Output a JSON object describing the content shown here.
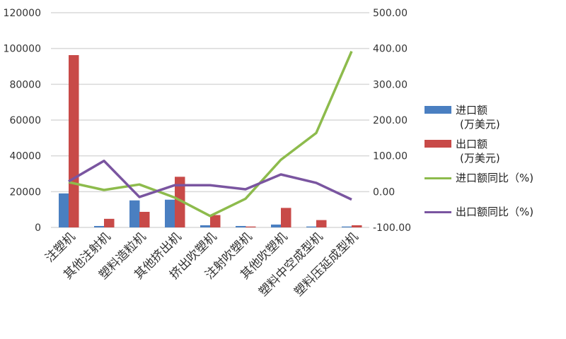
{
  "chart_data": {
    "type": "bar+line",
    "categories": [
      "注塑机",
      "其他注射机",
      "塑料造粒机",
      "其他挤出机",
      "挤出吹塑机",
      "注射吹塑机",
      "其他吹塑机",
      "塑料中空成型机",
      "塑料压延成型机"
    ],
    "left_axis": {
      "range": [
        0,
        120000
      ],
      "ticks": [
        "0",
        "20000",
        "40000",
        "60000",
        "80000",
        "100000",
        "120000"
      ]
    },
    "right_axis": {
      "range": [
        -100,
        500
      ],
      "ticks": [
        "-100.00",
        "0.00",
        "100.00",
        "200.00",
        "300.00",
        "400.00",
        "500.00"
      ]
    },
    "grid": true,
    "legend_position": "right",
    "series": [
      {
        "name": "进口额",
        "name2": "(万美元)",
        "type": "bar",
        "axis": "left",
        "color": "#4a7fc1",
        "values": [
          19000,
          800,
          15100,
          15500,
          1200,
          800,
          1600,
          500,
          500
        ]
      },
      {
        "name": "出口额",
        "name2": "(万美元)",
        "type": "bar",
        "axis": "left",
        "color": "#c84a48",
        "values": [
          96300,
          4800,
          8700,
          28300,
          6900,
          500,
          10900,
          4100,
          1200
        ]
      },
      {
        "name": "进口额同比（%)",
        "type": "line",
        "axis": "right",
        "color": "#8dbb4c",
        "values": [
          26.5,
          4.6,
          20,
          -16.6,
          -68,
          -20,
          89,
          164,
          392
        ]
      },
      {
        "name": "出口额同比（%)",
        "type": "line",
        "axis": "right",
        "color": "#7a55a0",
        "values": [
          28.5,
          86,
          -15,
          18,
          18,
          6.6,
          48,
          24.5,
          -22
        ]
      }
    ]
  }
}
